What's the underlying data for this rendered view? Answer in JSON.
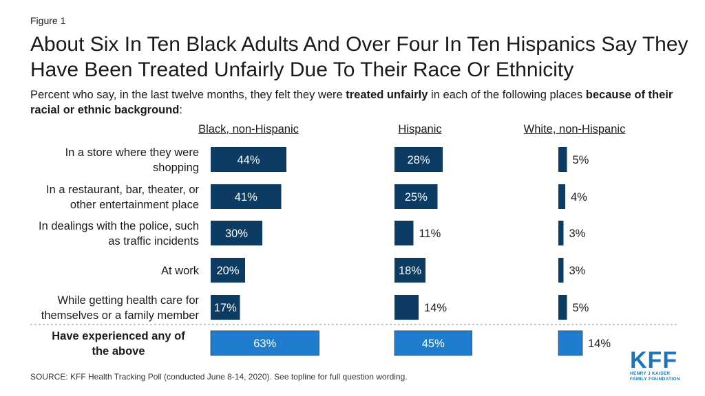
{
  "figure_label": "Figure 1",
  "title": "About Six In Ten Black Adults And Over Four In Ten Hispanics Say They Have Been Treated Unfairly Due To Their Race Or Ethnicity",
  "subtitle": {
    "part1": "Percent who say, in the last twelve months, they felt they were ",
    "bold1": "treated unfairly",
    "part2": " in each of the following places ",
    "bold2": "because of their racial or ethnic background",
    "part3": ":"
  },
  "source": "SOURCE: KFF Health Tracking Poll (conducted June 8-14, 2020). See topline for full question wording.",
  "logo": {
    "main": "KFF",
    "line1": "HENRY J KAISER",
    "line2": "FAMILY FOUNDATION"
  },
  "colors": {
    "bar_dark": "#0c3b63",
    "bar_total": "#1f7dd0",
    "label_white": "#ffffff",
    "label_dark": "#1a1a1a"
  },
  "chart_data": {
    "type": "bar",
    "categories": [
      "In a store where they were shopping",
      "In a restaurant, bar, theater, or other entertainment place",
      "In dealings with the police, such as traffic incidents",
      "At work",
      "While getting health care for themselves or a family member",
      "Have experienced any of the above"
    ],
    "category_lines": [
      [
        "In a store where they were",
        "shopping"
      ],
      [
        "In a restaurant, bar, theater, or",
        "other entertainment place"
      ],
      [
        "In dealings with the police, such",
        "as traffic incidents"
      ],
      [
        "At work"
      ],
      [
        "While getting health care for",
        "themselves or a family member"
      ],
      [
        "Have experienced any of",
        "the above"
      ]
    ],
    "series": [
      {
        "name": "Black, non-Hispanic",
        "values": [
          44,
          41,
          30,
          20,
          17,
          63
        ]
      },
      {
        "name": "Hispanic",
        "values": [
          28,
          25,
          11,
          18,
          14,
          45
        ]
      },
      {
        "name": "White, non-Hispanic",
        "values": [
          5,
          4,
          3,
          3,
          5,
          14
        ]
      }
    ],
    "value_suffix": "%",
    "highlight_category_index": 5
  }
}
